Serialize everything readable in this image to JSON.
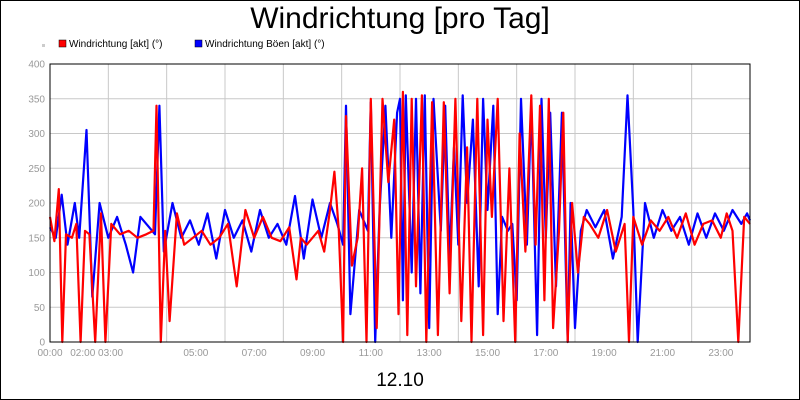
{
  "chart_data": {
    "type": "line",
    "title": "Windrichtung [pro Tag]",
    "date_label": "12.10",
    "ylim": [
      0,
      400
    ],
    "y_ticks": [
      0,
      50,
      100,
      150,
      200,
      250,
      300,
      350,
      400
    ],
    "x_tick_labels": [
      "00:00",
      "02:00 03:00",
      "05:00",
      "07:00",
      "09:00",
      "11:00",
      "13:00",
      "15:00",
      "17:00",
      "19:00",
      "21:00",
      "23:00"
    ],
    "grid": true,
    "legend_position": "top-left",
    "series": [
      {
        "name": "Windrichtung Böen [akt] (°)",
        "color": "#0000ff",
        "points": [
          [
            0.0,
            165
          ],
          [
            0.2,
            150
          ],
          [
            0.4,
            212
          ],
          [
            0.6,
            140
          ],
          [
            0.85,
            200
          ],
          [
            1.0,
            150
          ],
          [
            1.25,
            305
          ],
          [
            1.45,
            65
          ],
          [
            1.7,
            200
          ],
          [
            2.0,
            150
          ],
          [
            2.3,
            180
          ],
          [
            2.6,
            140
          ],
          [
            2.85,
            100
          ],
          [
            3.1,
            180
          ],
          [
            3.4,
            165
          ],
          [
            3.6,
            155
          ],
          [
            3.75,
            340
          ],
          [
            3.9,
            130
          ],
          [
            4.2,
            200
          ],
          [
            4.5,
            150
          ],
          [
            4.8,
            175
          ],
          [
            5.1,
            140
          ],
          [
            5.4,
            185
          ],
          [
            5.7,
            120
          ],
          [
            6.0,
            190
          ],
          [
            6.3,
            150
          ],
          [
            6.6,
            175
          ],
          [
            6.9,
            130
          ],
          [
            7.2,
            190
          ],
          [
            7.5,
            150
          ],
          [
            7.8,
            170
          ],
          [
            8.1,
            140
          ],
          [
            8.4,
            210
          ],
          [
            8.7,
            120
          ],
          [
            9.0,
            205
          ],
          [
            9.3,
            150
          ],
          [
            9.6,
            200
          ],
          [
            9.85,
            170
          ],
          [
            10.05,
            140
          ],
          [
            10.15,
            340
          ],
          [
            10.3,
            40
          ],
          [
            10.6,
            190
          ],
          [
            10.9,
            160
          ],
          [
            11.0,
            345
          ],
          [
            11.15,
            0
          ],
          [
            11.3,
            190
          ],
          [
            11.5,
            340
          ],
          [
            11.7,
            150
          ],
          [
            11.9,
            330
          ],
          [
            12.0,
            350
          ],
          [
            12.1,
            60
          ],
          [
            12.2,
            355
          ],
          [
            12.4,
            100
          ],
          [
            12.55,
            350
          ],
          [
            12.7,
            70
          ],
          [
            12.85,
            355
          ],
          [
            13.0,
            20
          ],
          [
            13.15,
            350
          ],
          [
            13.4,
            160
          ],
          [
            13.55,
            340
          ],
          [
            13.7,
            120
          ],
          [
            13.85,
            280
          ],
          [
            14.0,
            140
          ],
          [
            14.15,
            355
          ],
          [
            14.3,
            200
          ],
          [
            14.5,
            320
          ],
          [
            14.7,
            80
          ],
          [
            14.85,
            350
          ],
          [
            15.0,
            190
          ],
          [
            15.2,
            340
          ],
          [
            15.35,
            40
          ],
          [
            15.5,
            180
          ],
          [
            15.7,
            160
          ],
          [
            15.85,
            170
          ],
          [
            16.0,
            60
          ],
          [
            16.15,
            350
          ],
          [
            16.35,
            140
          ],
          [
            16.5,
            340
          ],
          [
            16.7,
            10
          ],
          [
            16.85,
            350
          ],
          [
            17.0,
            150
          ],
          [
            17.15,
            330
          ],
          [
            17.35,
            80
          ],
          [
            17.55,
            330
          ],
          [
            17.75,
            0
          ],
          [
            17.85,
            200
          ],
          [
            18.0,
            20
          ],
          [
            18.2,
            160
          ],
          [
            18.4,
            190
          ],
          [
            18.7,
            165
          ],
          [
            19.0,
            190
          ],
          [
            19.3,
            120
          ],
          [
            19.6,
            180
          ],
          [
            19.8,
            355
          ],
          [
            20.0,
            190
          ],
          [
            20.15,
            0
          ],
          [
            20.4,
            200
          ],
          [
            20.7,
            150
          ],
          [
            21.0,
            190
          ],
          [
            21.3,
            160
          ],
          [
            21.6,
            180
          ],
          [
            21.9,
            140
          ],
          [
            22.2,
            185
          ],
          [
            22.5,
            150
          ],
          [
            22.8,
            185
          ],
          [
            23.1,
            160
          ],
          [
            23.4,
            190
          ],
          [
            23.7,
            170
          ],
          [
            23.9,
            185
          ],
          [
            24.0,
            175
          ]
        ]
      },
      {
        "name": "Windrichtung [akt] (°)",
        "color": "#ff0000",
        "points": [
          [
            0.0,
            180
          ],
          [
            0.15,
            145
          ],
          [
            0.3,
            220
          ],
          [
            0.42,
            0
          ],
          [
            0.55,
            155
          ],
          [
            0.75,
            150
          ],
          [
            0.9,
            170
          ],
          [
            1.05,
            0
          ],
          [
            1.2,
            160
          ],
          [
            1.35,
            155
          ],
          [
            1.55,
            0
          ],
          [
            1.75,
            185
          ],
          [
            1.9,
            0
          ],
          [
            2.1,
            170
          ],
          [
            2.4,
            155
          ],
          [
            2.7,
            160
          ],
          [
            3.0,
            150
          ],
          [
            3.3,
            155
          ],
          [
            3.55,
            160
          ],
          [
            3.65,
            340
          ],
          [
            3.8,
            0
          ],
          [
            3.95,
            160
          ],
          [
            4.1,
            30
          ],
          [
            4.35,
            185
          ],
          [
            4.6,
            140
          ],
          [
            4.9,
            150
          ],
          [
            5.2,
            160
          ],
          [
            5.5,
            140
          ],
          [
            5.8,
            150
          ],
          [
            6.1,
            170
          ],
          [
            6.4,
            80
          ],
          [
            6.7,
            190
          ],
          [
            7.0,
            150
          ],
          [
            7.3,
            180
          ],
          [
            7.6,
            150
          ],
          [
            7.9,
            145
          ],
          [
            8.2,
            165
          ],
          [
            8.45,
            90
          ],
          [
            8.6,
            150
          ],
          [
            8.8,
            140
          ],
          [
            9.0,
            150
          ],
          [
            9.2,
            160
          ],
          [
            9.4,
            130
          ],
          [
            9.6,
            190
          ],
          [
            9.75,
            245
          ],
          [
            9.9,
            160
          ],
          [
            10.05,
            0
          ],
          [
            10.15,
            325
          ],
          [
            10.35,
            110
          ],
          [
            10.55,
            150
          ],
          [
            10.7,
            250
          ],
          [
            10.85,
            0
          ],
          [
            11.0,
            350
          ],
          [
            11.2,
            20
          ],
          [
            11.4,
            350
          ],
          [
            11.6,
            230
          ],
          [
            11.8,
            320
          ],
          [
            11.95,
            40
          ],
          [
            12.1,
            360
          ],
          [
            12.25,
            10
          ],
          [
            12.4,
            350
          ],
          [
            12.55,
            80
          ],
          [
            12.75,
            355
          ],
          [
            12.9,
            0
          ],
          [
            13.1,
            345
          ],
          [
            13.3,
            10
          ],
          [
            13.5,
            345
          ],
          [
            13.7,
            70
          ],
          [
            13.9,
            350
          ],
          [
            14.1,
            30
          ],
          [
            14.3,
            280
          ],
          [
            14.45,
            0
          ],
          [
            14.65,
            350
          ],
          [
            14.85,
            10
          ],
          [
            15.0,
            320
          ],
          [
            15.15,
            180
          ],
          [
            15.35,
            350
          ],
          [
            15.55,
            30
          ],
          [
            15.75,
            250
          ],
          [
            15.95,
            0
          ],
          [
            16.1,
            300
          ],
          [
            16.3,
            130
          ],
          [
            16.5,
            355
          ],
          [
            16.65,
            140
          ],
          [
            16.8,
            340
          ],
          [
            16.95,
            60
          ],
          [
            17.1,
            350
          ],
          [
            17.25,
            20
          ],
          [
            17.45,
            160
          ],
          [
            17.6,
            330
          ],
          [
            17.75,
            0
          ],
          [
            17.9,
            200
          ],
          [
            18.1,
            100
          ],
          [
            18.3,
            180
          ],
          [
            18.5,
            170
          ],
          [
            18.8,
            150
          ],
          [
            19.1,
            190
          ],
          [
            19.4,
            130
          ],
          [
            19.7,
            170
          ],
          [
            19.85,
            0
          ],
          [
            20.0,
            180
          ],
          [
            20.3,
            140
          ],
          [
            20.6,
            175
          ],
          [
            20.9,
            160
          ],
          [
            21.2,
            180
          ],
          [
            21.5,
            150
          ],
          [
            21.8,
            185
          ],
          [
            22.1,
            140
          ],
          [
            22.4,
            170
          ],
          [
            22.7,
            175
          ],
          [
            23.0,
            150
          ],
          [
            23.2,
            185
          ],
          [
            23.4,
            160
          ],
          [
            23.6,
            0
          ],
          [
            23.8,
            180
          ],
          [
            24.0,
            170
          ]
        ]
      }
    ]
  }
}
